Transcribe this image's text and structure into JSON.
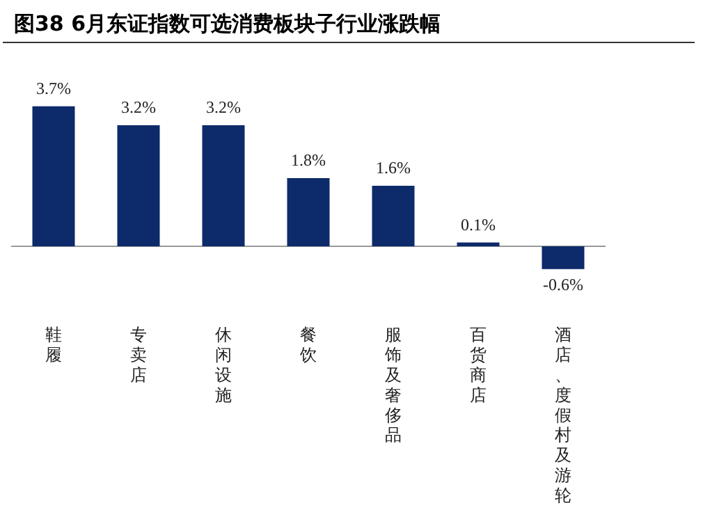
{
  "chart_data": {
    "type": "bar",
    "title": "图38 6月东证指数可选消费板块子行业涨跌幅",
    "categories": [
      "鞋履",
      "专卖店",
      "休闲设施",
      "餐饮",
      "服饰及奢侈品",
      "百货商店",
      "酒店、度假村及游轮"
    ],
    "values": [
      3.7,
      3.2,
      3.2,
      1.8,
      1.6,
      0.1,
      -0.6
    ],
    "value_labels": [
      "3.7%",
      "3.2%",
      "3.2%",
      "1.8%",
      "1.6%",
      "0.1%",
      "-0.6%"
    ],
    "color": "#0d2a6a",
    "grid": false,
    "legend": false
  }
}
